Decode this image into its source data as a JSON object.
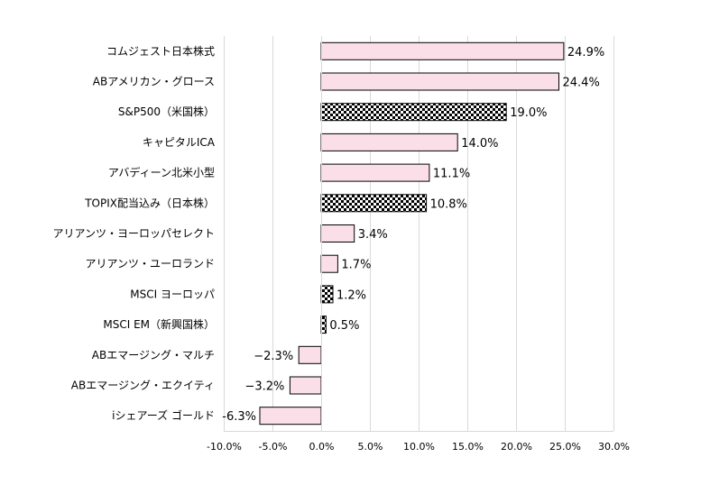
{
  "chart_data": {
    "type": "bar",
    "orientation": "horizontal",
    "categories": [
      "コムジェスト日本株式",
      "ABアメリカン・グロース",
      "S&P500（米国株）",
      "キャピタルICA",
      "アバディーン北米小型",
      "TOPIX配当込み（日本株）",
      "アリアンツ・ヨーロッパセレクト",
      "アリアンツ・ユーロランド",
      "MSCI ヨーロッパ",
      "MSCI EM（新興国株）",
      "ABエマージング・マルチ",
      "ABエマージング・エクイティ",
      "iシェアーズ ゴールド"
    ],
    "values": [
      24.9,
      24.4,
      19.0,
      14.0,
      11.1,
      10.8,
      3.4,
      1.7,
      1.2,
      0.5,
      -2.3,
      -3.2,
      -6.3
    ],
    "value_labels": [
      "24.9%",
      "24.4%",
      "19.0%",
      "14.0%",
      "11.1%",
      "10.8%",
      "3.4%",
      "1.7%",
      "1.2%",
      "0.5%",
      "−2.3%",
      "−3.2%",
      "-6.3%"
    ],
    "styles": [
      "pink",
      "pink",
      "checker",
      "pink",
      "pink",
      "checker",
      "pink",
      "pink",
      "checker",
      "checker",
      "pink",
      "pink",
      "pink"
    ],
    "x_ticks": [
      "-10.0%",
      "-5.0%",
      "0.0%",
      "5.0%",
      "10.0%",
      "15.0%",
      "20.0%",
      "25.0%",
      "30.0%"
    ],
    "x_tick_values": [
      -10,
      -5,
      0,
      5,
      10,
      15,
      20,
      25,
      30
    ],
    "xlim": [
      -10,
      30
    ],
    "grid": "vertical",
    "legend": "none",
    "colors": {
      "pink": "#fbdfe8",
      "checker_dark": "#000000",
      "checker_light": "#ffffff",
      "grid": "#d9d9d9",
      "bar_border": "#000000"
    }
  }
}
